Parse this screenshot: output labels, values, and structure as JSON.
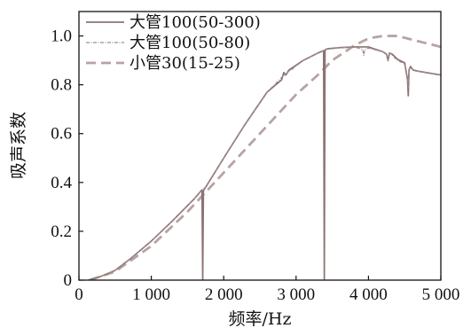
{
  "chart_data": {
    "type": "line",
    "xlabel": "频率/Hz",
    "ylabel": "吸声系数",
    "xlim": [
      0,
      5000
    ],
    "ylim": [
      0,
      1.1
    ],
    "xticks": [
      0,
      1000,
      2000,
      3000,
      4000,
      5000
    ],
    "xtick_labels": [
      "0",
      "1 000",
      "2 000",
      "3 000",
      "4 000",
      "5 000"
    ],
    "yticks": [
      0,
      0.2,
      0.4,
      0.6,
      0.8,
      1.0
    ],
    "ytick_labels": [
      "0",
      "0.2",
      "0.4",
      "0.6",
      "0.8",
      "1.0"
    ],
    "grid": false,
    "legend_position": "top-left",
    "series": [
      {
        "name": "大管100(50-300)",
        "style": "solid",
        "color": "#8c7373",
        "x": [
          130,
          300,
          500,
          700,
          1000,
          1300,
          1600,
          1700,
          1710,
          1720,
          1730,
          1750,
          2000,
          2300,
          2600,
          2800,
          2830,
          2860,
          2900,
          3100,
          3300,
          3380,
          3390,
          3400,
          3410,
          3450,
          3600,
          3800,
          4000,
          4200,
          4250,
          4270,
          4290,
          4330,
          4400,
          4500,
          4540,
          4550,
          4560,
          4580,
          4620,
          4700,
          4800,
          4900,
          5000
        ],
        "y": [
          0.0,
          0.015,
          0.04,
          0.085,
          0.16,
          0.245,
          0.335,
          0.37,
          0.0,
          0.365,
          0.372,
          0.38,
          0.5,
          0.64,
          0.77,
          0.82,
          0.85,
          0.84,
          0.86,
          0.9,
          0.93,
          0.94,
          0.0,
          0.94,
          0.945,
          0.948,
          0.952,
          0.955,
          0.955,
          0.935,
          0.925,
          0.9,
          0.93,
          0.925,
          0.905,
          0.89,
          0.82,
          0.755,
          0.86,
          0.875,
          0.86,
          0.855,
          0.85,
          0.845,
          0.84
        ]
      },
      {
        "name": "大管100(50-80)",
        "style": "dashdot",
        "color": "#a08c8c",
        "x": [
          130,
          300,
          500,
          700,
          1000,
          1300,
          1600,
          1700,
          1720,
          1740,
          2000,
          2300,
          2600,
          2800,
          3100,
          3300,
          3380,
          3420,
          3600,
          3800,
          3920,
          3935,
          3950,
          4000,
          4200,
          4250,
          4270,
          4290,
          4330,
          4400,
          4500,
          4540,
          4550,
          4560,
          4580,
          4620,
          4700,
          4800,
          4900,
          5000
        ],
        "y": [
          0.0,
          0.015,
          0.04,
          0.085,
          0.16,
          0.245,
          0.335,
          0.37,
          0.374,
          0.378,
          0.5,
          0.64,
          0.77,
          0.83,
          0.9,
          0.93,
          0.94,
          0.945,
          0.952,
          0.955,
          0.945,
          0.92,
          0.945,
          0.95,
          0.935,
          0.925,
          0.895,
          0.93,
          0.92,
          0.9,
          0.885,
          0.83,
          0.79,
          0.86,
          0.87,
          0.86,
          0.855,
          0.85,
          0.845,
          0.84
        ]
      },
      {
        "name": "小管30(15-25)",
        "style": "dashed",
        "color": "#b7a3a3",
        "x": [
          150,
          500,
          1000,
          1500,
          2000,
          2500,
          3000,
          3300,
          3500,
          3800,
          4000,
          4200,
          4400,
          4600,
          4800,
          5000
        ],
        "y": [
          0.0,
          0.035,
          0.14,
          0.28,
          0.44,
          0.6,
          0.76,
          0.84,
          0.9,
          0.96,
          0.99,
          1.0,
          1.0,
          0.985,
          0.97,
          0.955
        ]
      }
    ]
  }
}
